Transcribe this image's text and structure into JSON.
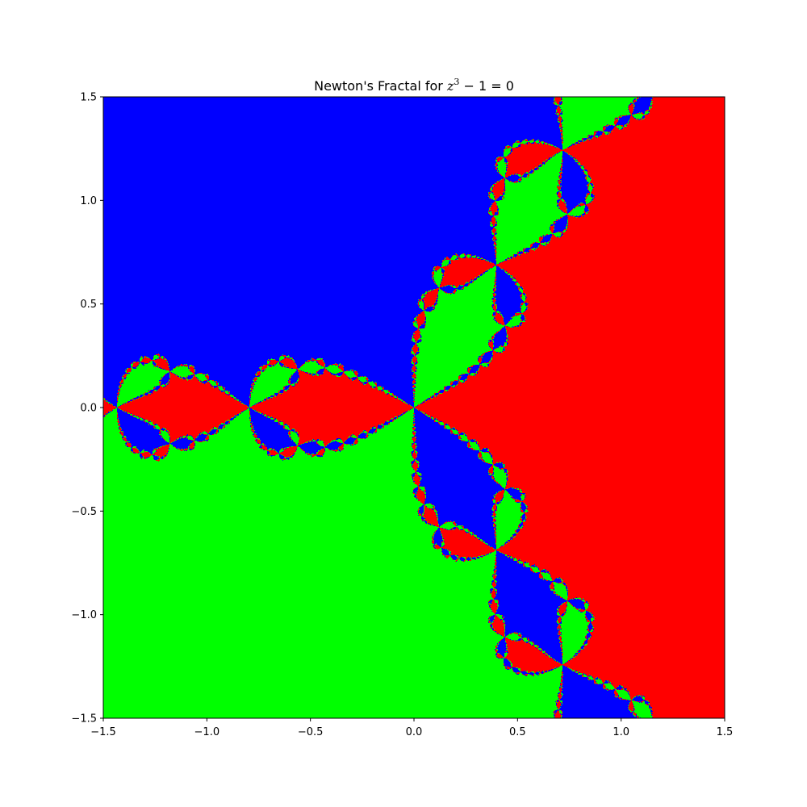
{
  "chart_data": {
    "type": "heatmap",
    "title": {
      "prefix": "Newton's Fractal for ",
      "math_var": "z",
      "math_exp": "3",
      "math_rest": " − 1 = 0"
    },
    "equation": "z^3 - 1 = 0",
    "xlim": [
      -1.5,
      1.5
    ],
    "ylim": [
      -1.5,
      1.5
    ],
    "x_ticks": [
      -1.5,
      -1.0,
      -0.5,
      0.0,
      0.5,
      1.0,
      1.5
    ],
    "y_ticks": [
      -1.5,
      -1.0,
      -0.5,
      0.0,
      0.5,
      1.0,
      1.5
    ],
    "x_tick_labels": [
      "−1.5",
      "−1.0",
      "−0.5",
      "0.0",
      "0.5",
      "1.0",
      "1.5"
    ],
    "y_tick_labels": [
      "−1.5",
      "−1.0",
      "−0.5",
      "0.0",
      "0.5",
      "1.0",
      "1.5"
    ],
    "grid": false,
    "roots": [
      {
        "re": 1.0,
        "im": 0.0,
        "color": "#ff0000"
      },
      {
        "re": -0.5,
        "im": 0.8660254,
        "color": "#0000ff"
      },
      {
        "re": -0.5,
        "im": -0.8660254,
        "color": "#00ff00"
      }
    ],
    "max_iterations": 50
  }
}
